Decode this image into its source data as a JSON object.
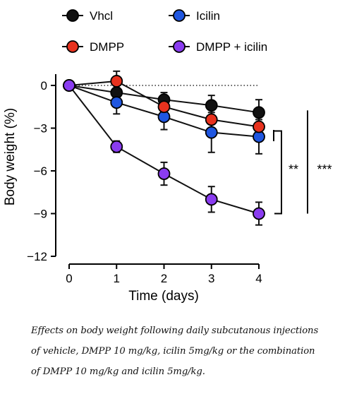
{
  "chart_data": {
    "type": "line",
    "x": [
      0,
      1,
      2,
      3,
      4
    ],
    "xlabel": "Time (days)",
    "ylabel": "Body weight (%)",
    "xlim": [
      0,
      4
    ],
    "ylim": [
      -12,
      0
    ],
    "xticks": [
      "0",
      "1",
      "2",
      "3",
      "4"
    ],
    "yticks": [
      "0",
      "−3",
      "−6",
      "−9",
      "−12"
    ],
    "legend_position": "top",
    "series": [
      {
        "name": "Vhcl",
        "color": "#111111",
        "values": [
          0,
          -0.5,
          -1.0,
          -1.4,
          -1.9
        ],
        "errors": [
          0.2,
          0.8,
          0.5,
          0.7,
          0.9
        ]
      },
      {
        "name": "Icilin",
        "color": "#1f56e0",
        "values": [
          0,
          -1.2,
          -2.2,
          -3.3,
          -3.6
        ],
        "errors": [
          0.2,
          0.8,
          0.9,
          1.4,
          1.2
        ]
      },
      {
        "name": "DMPP",
        "color": "#e8321e",
        "values": [
          0,
          0.3,
          -1.5,
          -2.4,
          -2.9
        ],
        "errors": [
          0.2,
          0.7,
          0.8,
          0.8,
          0.8
        ]
      },
      {
        "name": "DMPP + icilin",
        "color": "#8a3cf0",
        "values": [
          0,
          -4.3,
          -6.2,
          -8.0,
          -9.0
        ],
        "errors": [
          0.2,
          0.4,
          0.8,
          0.9,
          0.8
        ]
      }
    ],
    "legend_order": [
      0,
      1,
      2,
      3
    ],
    "significance": [
      {
        "label": "**",
        "y_from": -3.2,
        "y_to": -9.0
      },
      {
        "label": "***",
        "y_from": -1.9,
        "y_to": -9.0
      }
    ],
    "baseline": 0
  },
  "caption": "Effects on body weight following daily subcutanous injections\nof vehicle, DMPP 10 mg/kg, icilin 5mg/kg or the combination\nof DMPP 10 mg/kg and icilin 5mg/kg."
}
